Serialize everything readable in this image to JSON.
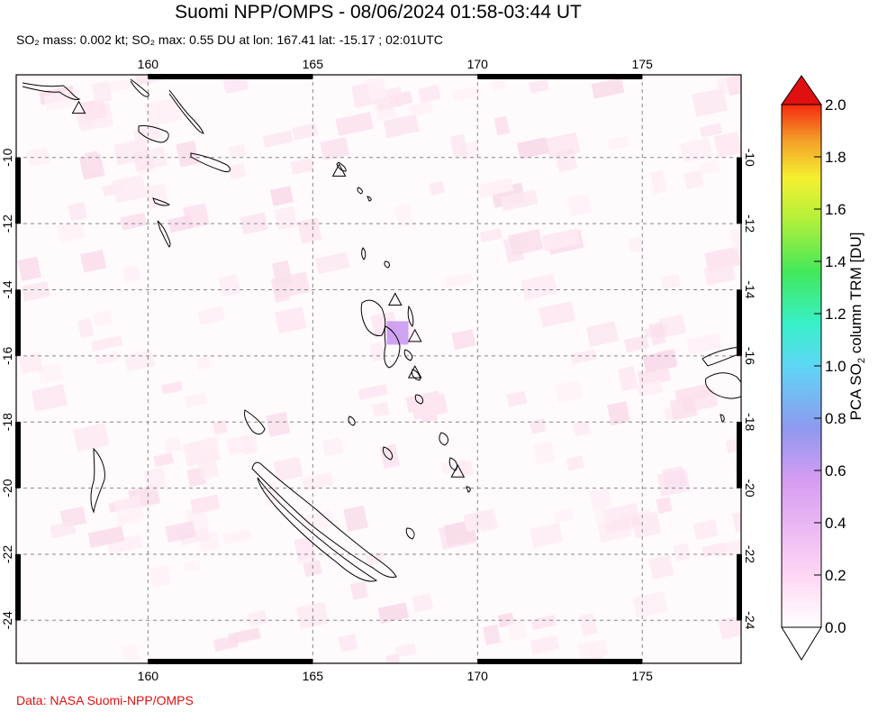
{
  "title": "Suomi NPP/OMPS - 08/06/2024 01:58-03:44 UT",
  "subtitle": "SO₂ mass: 0.002 kt; SO₂ max: 0.55 DU at lon: 167.41 lat: -15.17 ; 02:01UTC",
  "credit": "Data: NASA Suomi-NPP/OMPS",
  "map": {
    "lon_range": [
      156,
      178
    ],
    "lat_range": [
      -25.3,
      -7.5
    ],
    "lon_ticks": [
      160,
      165,
      170,
      175
    ],
    "lat_ticks": [
      -10,
      -12,
      -14,
      -16,
      -18,
      -20,
      -22,
      -24
    ],
    "grid": "dashed"
  },
  "colorbar": {
    "label": "PCA SO₂ column TRM [DU]",
    "min": 0.0,
    "max": 2.0,
    "ticks": [
      "0.0",
      "0.2",
      "0.4",
      "0.6",
      "0.8",
      "1.0",
      "1.2",
      "1.4",
      "1.6",
      "1.8",
      "2.0"
    ],
    "colors": [
      "#ffffff",
      "#ffd6f4",
      "#d69cf2",
      "#8f99f0",
      "#5ed6f5",
      "#38f0c8",
      "#43e85a",
      "#b2f03a",
      "#f5f030",
      "#f5a028",
      "#f52a10",
      "#e01010"
    ]
  },
  "volcano_markers": [
    {
      "lon": 157.9,
      "lat": -8.5
    },
    {
      "lon": 165.8,
      "lat": -10.4
    },
    {
      "lon": 167.5,
      "lat": -14.3
    },
    {
      "lon": 168.1,
      "lat": -15.4
    },
    {
      "lon": 168.1,
      "lat": -16.5
    },
    {
      "lon": 169.4,
      "lat": -19.5
    }
  ],
  "so2_max_point": {
    "lon": 167.41,
    "lat": -15.17,
    "value": 0.55
  }
}
